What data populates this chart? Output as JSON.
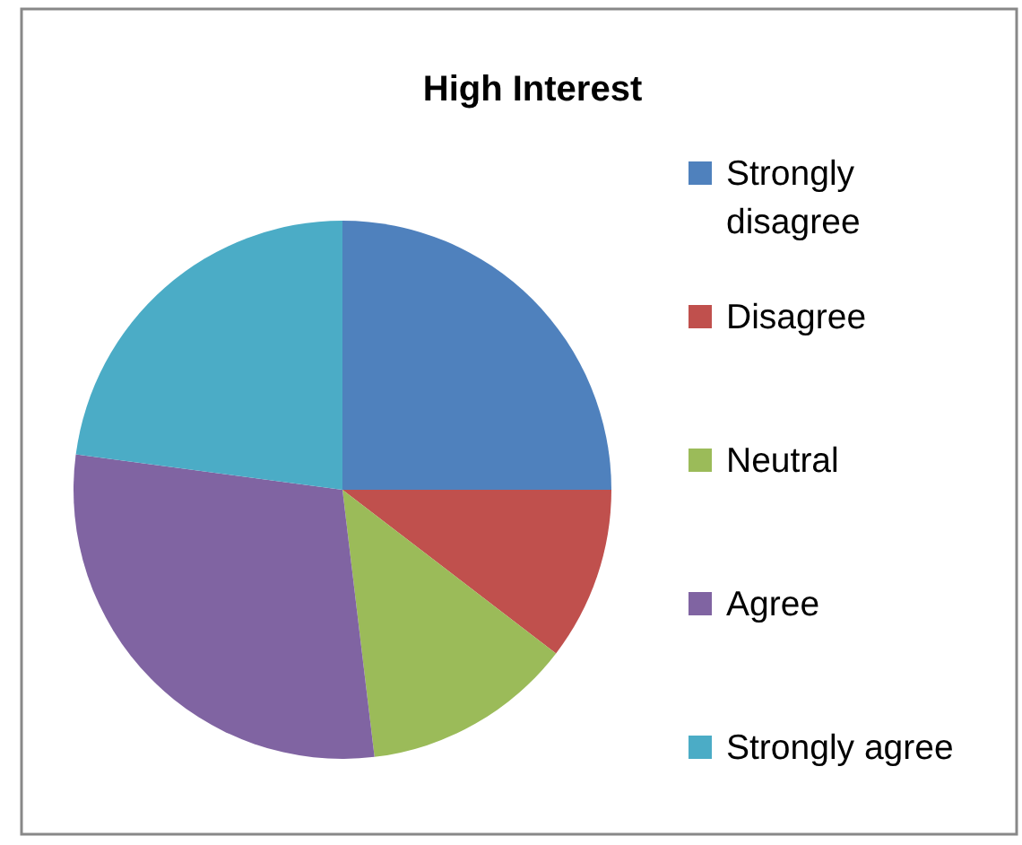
{
  "chart_data": {
    "type": "pie",
    "title": "High Interest",
    "categories": [
      "Strongly disagree",
      "Disagree",
      "Neutral",
      "Agree",
      "Strongly agree"
    ],
    "values": [
      25,
      10.4,
      12.7,
      29,
      22.9
    ],
    "colors": [
      "#4f81bd",
      "#c0504d",
      "#9bbb59",
      "#8064a2",
      "#4bacc6"
    ],
    "legend": "right"
  }
}
